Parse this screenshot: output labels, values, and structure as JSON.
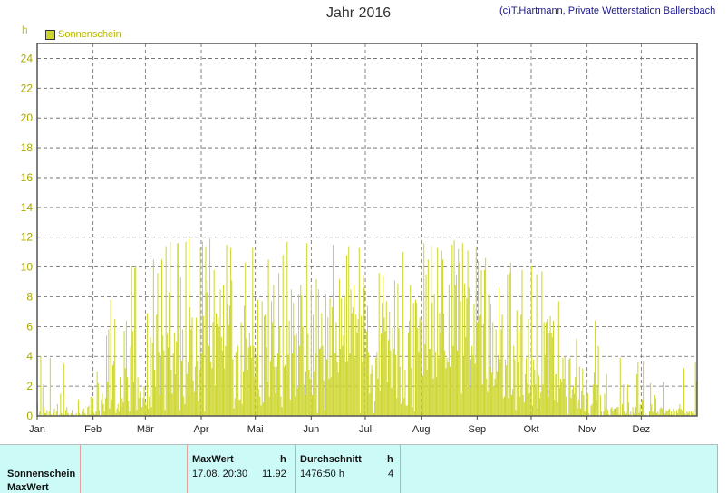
{
  "header": {
    "title": "Jahr 2016",
    "credit": "(c)T.Hartmann, Private Wetterstation Ballersbach",
    "unit": "h",
    "legend": "Sonnenschein"
  },
  "table": {
    "row_label": "Sonnenschein",
    "row_label2": "MaxWert",
    "max_header": "MaxWert",
    "max_unit": "h",
    "max_datetime": "17.08.  20:30",
    "max_value": "11.92",
    "avg_header": "Durchschnitt",
    "avg_unit": "h",
    "avg_value": "1476:50 h",
    "avg_num": "4"
  },
  "chart_data": {
    "type": "bar",
    "title": "Jahr 2016",
    "ylabel": "h",
    "ylim": [
      0,
      25
    ],
    "yticks": [
      "0",
      "2",
      "4",
      "6",
      "8",
      "10",
      "12",
      "14",
      "16",
      "18",
      "20",
      "22",
      "24"
    ],
    "xticks": [
      "Jan",
      "Feb",
      "Mär",
      "Apr",
      "Mai",
      "Jun",
      "Jul",
      "Aug",
      "Sep",
      "Okt",
      "Nov",
      "Dez"
    ],
    "grid": true,
    "legend_position": "top-left",
    "series": [
      {
        "name": "Sonnenschein",
        "color": "#cdd52a",
        "monthly_peak_hours": [
          4.0,
          3.6,
          10.2,
          11.6,
          11.8,
          11.8,
          11.8,
          12.0,
          11.6,
          10.0,
          6.4,
          3.8
        ],
        "values": [
          0.9,
          0,
          0.3,
          4,
          0,
          2.1,
          0.6,
          0.2,
          0.2,
          0.4,
          0,
          0.3,
          3.9,
          0.1,
          0,
          0.2,
          0.5,
          0,
          0.3,
          0.8,
          0,
          0.1,
          1.5,
          0.2,
          0,
          3.5,
          0.1,
          0.4,
          0.6,
          0.2,
          0.1,
          0,
          0.2,
          0.4,
          0,
          0.1,
          0,
          0.2,
          0,
          1.1,
          0.2,
          0.1,
          0,
          0.3,
          0.5,
          0.2,
          0.1,
          0,
          0.6,
          0.7,
          0.1,
          1.3,
          0.4,
          1.2,
          0.2,
          0.1,
          0.3,
          3,
          2.2,
          0.4,
          0,
          1.1,
          1.5,
          0.8,
          0.3,
          1.2,
          5.4,
          2.3,
          5.8,
          0.5,
          7.8,
          1.1,
          3.4,
          3.7,
          6.5,
          0.2,
          0.5,
          0.8,
          0.3,
          2.6,
          0.6,
          1.2,
          0.9,
          5.7,
          3.2,
          6.4,
          2.6,
          1,
          0.3,
          4.6,
          10.1,
          5.7,
          2.3,
          9.9,
          10.1,
          0.4,
          2.6,
          1.2,
          1.6,
          0.4,
          0.6,
          1.2,
          2,
          0.9,
          0.7,
          6.9,
          0.5,
          1.3,
          5.3,
          0.6,
          4.9,
          10.5,
          3.1,
          2,
          6.8,
          9.6,
          4.3,
          1.4,
          4,
          10.5,
          5.4,
          4.4,
          0.4,
          11.4,
          5.5,
          4.6,
          8.3,
          11.7,
          3.1,
          1.5,
          4.2,
          5.6,
          2.8,
          5,
          11.6,
          11.6,
          0.4,
          9.3,
          3.7,
          5.8,
          1.3,
          0.8,
          11.7,
          2.8,
          3.6,
          11.9,
          7.3,
          5.8,
          6.6,
          2.4,
          1.6,
          3.3,
          6.6,
          3.7,
          1,
          3.1,
          11.3,
          4.2,
          11.7,
          6.7,
          0.3,
          11.4,
          8.3,
          9.1,
          4.7,
          11.9,
          3.6,
          3.2,
          6.3,
          9.8,
          2,
          6.9,
          6.2,
          6.6,
          6,
          8.5,
          5.3,
          4.4,
          8.8,
          3.2,
          4.7,
          11.5,
          7.5,
          6.1,
          7.4,
          11.3,
          9.1,
          3.8,
          0.5,
          1.2,
          4.3,
          1.5,
          4.7,
          1.1,
          1.1,
          6.3,
          0.8,
          3,
          7.4,
          10.3,
          5.2,
          3.1,
          4.6,
          5.6,
          4.7,
          3.9,
          11.3,
          4.7,
          2.6,
          3.9,
          4.7,
          7.8,
          1.8,
          1.3,
          0.7,
          7.7,
          0.9,
          6.7,
          6.8,
          4.6,
          2.3,
          10.5,
          1.3,
          3.7,
          7.7,
          6.3,
          8.8,
          3.3,
          1.5,
          3.3,
          4.2,
          9.6,
          6,
          1.3,
          0.6,
          10.8,
          3.3,
          3.4,
          3,
          11.7,
          4.1,
          6.4,
          1.1,
          8.5,
          4.2,
          7.6,
          5.4,
          1.3,
          5.5,
          1.9,
          8.2,
          4.7,
          8.8,
          8.1,
          6,
          2.1,
          1.4,
          3,
          11.6,
          5.5,
          3.1,
          2.5,
          8.8,
          1.4,
          6.8,
          3,
          4.2,
          9.2,
          0.2,
          8.5,
          4.5,
          4.6,
          6.9,
          4.7,
          2.4,
          0.4,
          8.2,
          3.8,
          6.6,
          2.5,
          7.9,
          2.6,
          7.3,
          11.5,
          4.2,
          4.2,
          6.3,
          3.6,
          2.9,
          9.2,
          4.5,
          7.9,
          4.7,
          5.4,
          8,
          3.6,
          10.8,
          3.7,
          11.4,
          4.2,
          8.5,
          6.9,
          7.3,
          8.8,
          3.9,
          6.8,
          5.6,
          6.5,
          11.3,
          0.2,
          6.7,
          3.6,
          9.4,
          8.6,
          3.9,
          5.7,
          7.4,
          4.3,
          1.5,
          2.8,
          3.4,
          3.1,
          0.2,
          1,
          3.9,
          4.3,
          2.5,
          9.6,
          1.7,
          5.5,
          7.6,
          9.4,
          6.6,
          5.7,
          7.7,
          2.3,
          5.1,
          7,
          4.4,
          1.9,
          5.9,
          4.5,
          9.1,
          4.1,
          1.2,
          8.9,
          5.9,
          3.3,
          0.8,
          10,
          11,
          1.2,
          3.1,
          0.7,
          0.7,
          5.6,
          6.4,
          8.8,
          3.2,
          0.6,
          7.6,
          0.3,
          7.8,
          7.6,
          5.9,
          4.3,
          6.6,
          6.4,
          11.9,
          2.7,
          11.6,
          4.8,
          9.5,
          3.1,
          10.5,
          4.5,
          4.5,
          11.4,
          7.6,
          2.5,
          8.2,
          4.3,
          2.6,
          11.3,
          3.9,
          6.9,
          5.6,
          11.1,
          10.5,
          6.9,
          4.4,
          3.2,
          3.9,
          3.6,
          8.8,
          3.3,
          9.8,
          11.5,
          4.7,
          11.8,
          8.8,
          9.5,
          4.4,
          11.2,
          10.3,
          7.7,
          1.5,
          11.6,
          4,
          8.9,
          5.3,
          7.9,
          11.1,
          8.6,
          1.9,
          3.8,
          4.7,
          4.1,
          7.5,
          3.5,
          11.4,
          6.3,
          10.4,
          6.7,
          6.8,
          9.8,
          2.1,
          6.2,
          9.8,
          10.6,
          2.5,
          1.6,
          8.2,
          3.3,
          7.5,
          2.9,
          6.3,
          2,
          2.5,
          5.8,
          3,
          4.1,
          8.6,
          3.8,
          5.8,
          6.8,
          1.2,
          1.3,
          3.8,
          3.4,
          9.5,
          1.2,
          9.6,
          10.3,
          1.4,
          1.8,
          4.7,
          3.8,
          0.4,
          7.1,
          3.6,
          5.7,
          1.3,
          6.8,
          9.8,
          1.4,
          0.9,
          2.8,
          3.9,
          2.2,
          6.5,
          1.5,
          2.1,
          10.1,
          0.7,
          3.8,
          3.1,
          2.1,
          9.5,
          0.5,
          2.7,
          1.2,
          1.6,
          9.7,
          2.1,
          6.3,
          4.1,
          6.3,
          6.5,
          1.3,
          5.6,
          6.7,
          5.6,
          5.3,
          6.4,
          1.1,
          2.8,
          2.8,
          0.9,
          7.7,
          1.9,
          2.5,
          2.3,
          3.9,
          2.5,
          4,
          1.3,
          5.6,
          0.1,
          3.8,
          3.9,
          1.2,
          1.8,
          2,
          1.5,
          2.6,
          5.2,
          0.5,
          1.1,
          3.3,
          0.5,
          1.7,
          3.2,
          1.4,
          0.3,
          0.5,
          2.4,
          1.5,
          0.2,
          0,
          0.7,
          0.8,
          2.1,
          2.9,
          6.4,
          1.1,
          2.1,
          4.7,
          0,
          1.4,
          0.3,
          0,
          0.3,
          1.5,
          0.5,
          2.8,
          0.4,
          0.1,
          0,
          0.5,
          0.6,
          0.3,
          0.5,
          0.5,
          0.5,
          0.6,
          0.6,
          0.1,
          3.9,
          0,
          0.8,
          2.1,
          0.3,
          0.1,
          0.2,
          2.1,
          0.9,
          0.1,
          0.3,
          0,
          0.6,
          0.2,
          0.1,
          0.6,
          2.8,
          3.6,
          0.2,
          0.8,
          0,
          1.1,
          3.7,
          0,
          0.2,
          0,
          0,
          0,
          0.3,
          2.2,
          0.8,
          0.3,
          0.2,
          1.4,
          1.2,
          0.2,
          0.3,
          0.1,
          0.5,
          0.6,
          0.5,
          2.3,
          0.1,
          0.2,
          0.4,
          0.3,
          0.4,
          0.5,
          0.1,
          0.3,
          0.1,
          0.5,
          0.3,
          0,
          0.4,
          0.2,
          0.5,
          0.8,
          0.5,
          0.4,
          0.3,
          3.2,
          0.2,
          0.1,
          0.3,
          0.2,
          0.3,
          0,
          0.3,
          0.2,
          0.3,
          0.1,
          3.6,
          2.3
        ]
      }
    ]
  }
}
